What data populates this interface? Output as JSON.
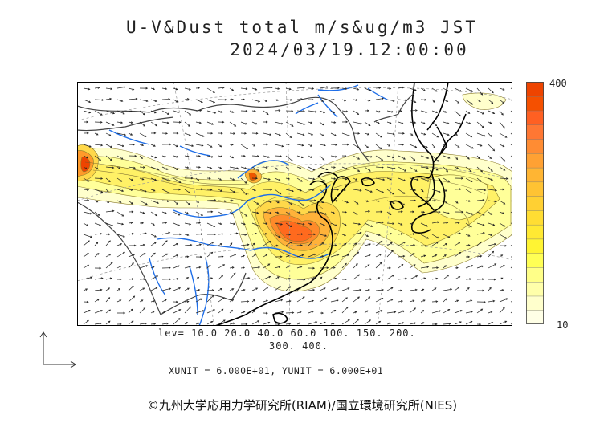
{
  "title_line1": "U-V&Dust total m/s&ug/m3 JST",
  "title_line2": "2024/03/19.12:00:00",
  "colorbar": {
    "max_label": "400",
    "min_label": "10",
    "colors": [
      "#FFFFE6",
      "#FFFFCC",
      "#FFFFAA",
      "#FFFF88",
      "#FFFF55",
      "#FFF433",
      "#FFE933",
      "#FFDD33",
      "#FFD033",
      "#FFC333",
      "#FFB533",
      "#FFA133",
      "#FF8C33",
      "#FF7733",
      "#FF6022",
      "#F55000",
      "#EE4400"
    ]
  },
  "levels_line1": "lev= 10.0 20.0 40.0 60.0 100. 150. 200.",
  "levels_line2": "300. 400.",
  "units_text": "XUNIT = 6.000E+01, YUNIT = 6.000E+01",
  "credit": "©九州大学応用力学研究所(RIAM)/国立環境研究所(NIES)",
  "map": {
    "type": "dust concentration with wind vectors",
    "colors": {
      "coast": "#000000",
      "river": "#1E6EE8",
      "border": "#555555",
      "vector": "#222222"
    }
  }
}
